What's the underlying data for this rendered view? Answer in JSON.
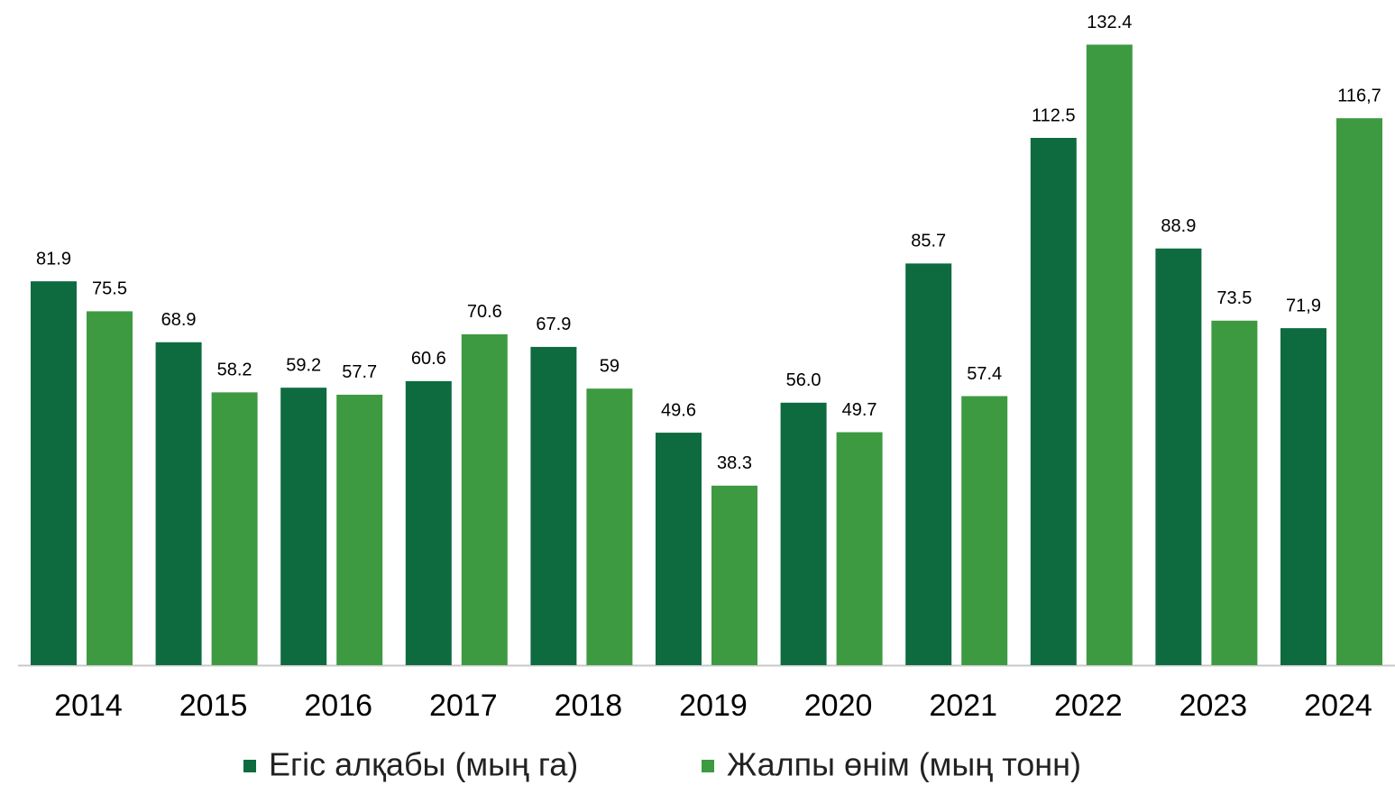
{
  "chart_data": {
    "type": "bar",
    "categories": [
      "2014",
      "2015",
      "2016",
      "2017",
      "2018",
      "2019",
      "2020",
      "2021",
      "2022",
      "2023",
      "2024"
    ],
    "series": [
      {
        "name": "Егіс алқабы (мың га)",
        "color": "#0e6b3f",
        "values": [
          81.9,
          68.9,
          59.2,
          60.6,
          67.9,
          49.6,
          56.0,
          85.7,
          112.5,
          88.9,
          71.9
        ],
        "value_labels": [
          "81.9",
          "68.9",
          "59.2",
          "60.6",
          "67.9",
          "49.6",
          "56.0",
          "85.7",
          "112.5",
          "88.9",
          "71,9"
        ]
      },
      {
        "name": "Жалпы өнім (мың тонн)",
        "color": "#3d9a41",
        "values": [
          75.5,
          58.2,
          57.7,
          70.6,
          59,
          38.3,
          49.7,
          57.4,
          132.4,
          73.5,
          116.7
        ],
        "value_labels": [
          "75.5",
          "58.2",
          "57.7",
          "70.6",
          "59",
          "38.3",
          "49.7",
          "57.4",
          "132.4",
          "73.5",
          "116,7"
        ]
      }
    ],
    "legend": "bottom"
  }
}
